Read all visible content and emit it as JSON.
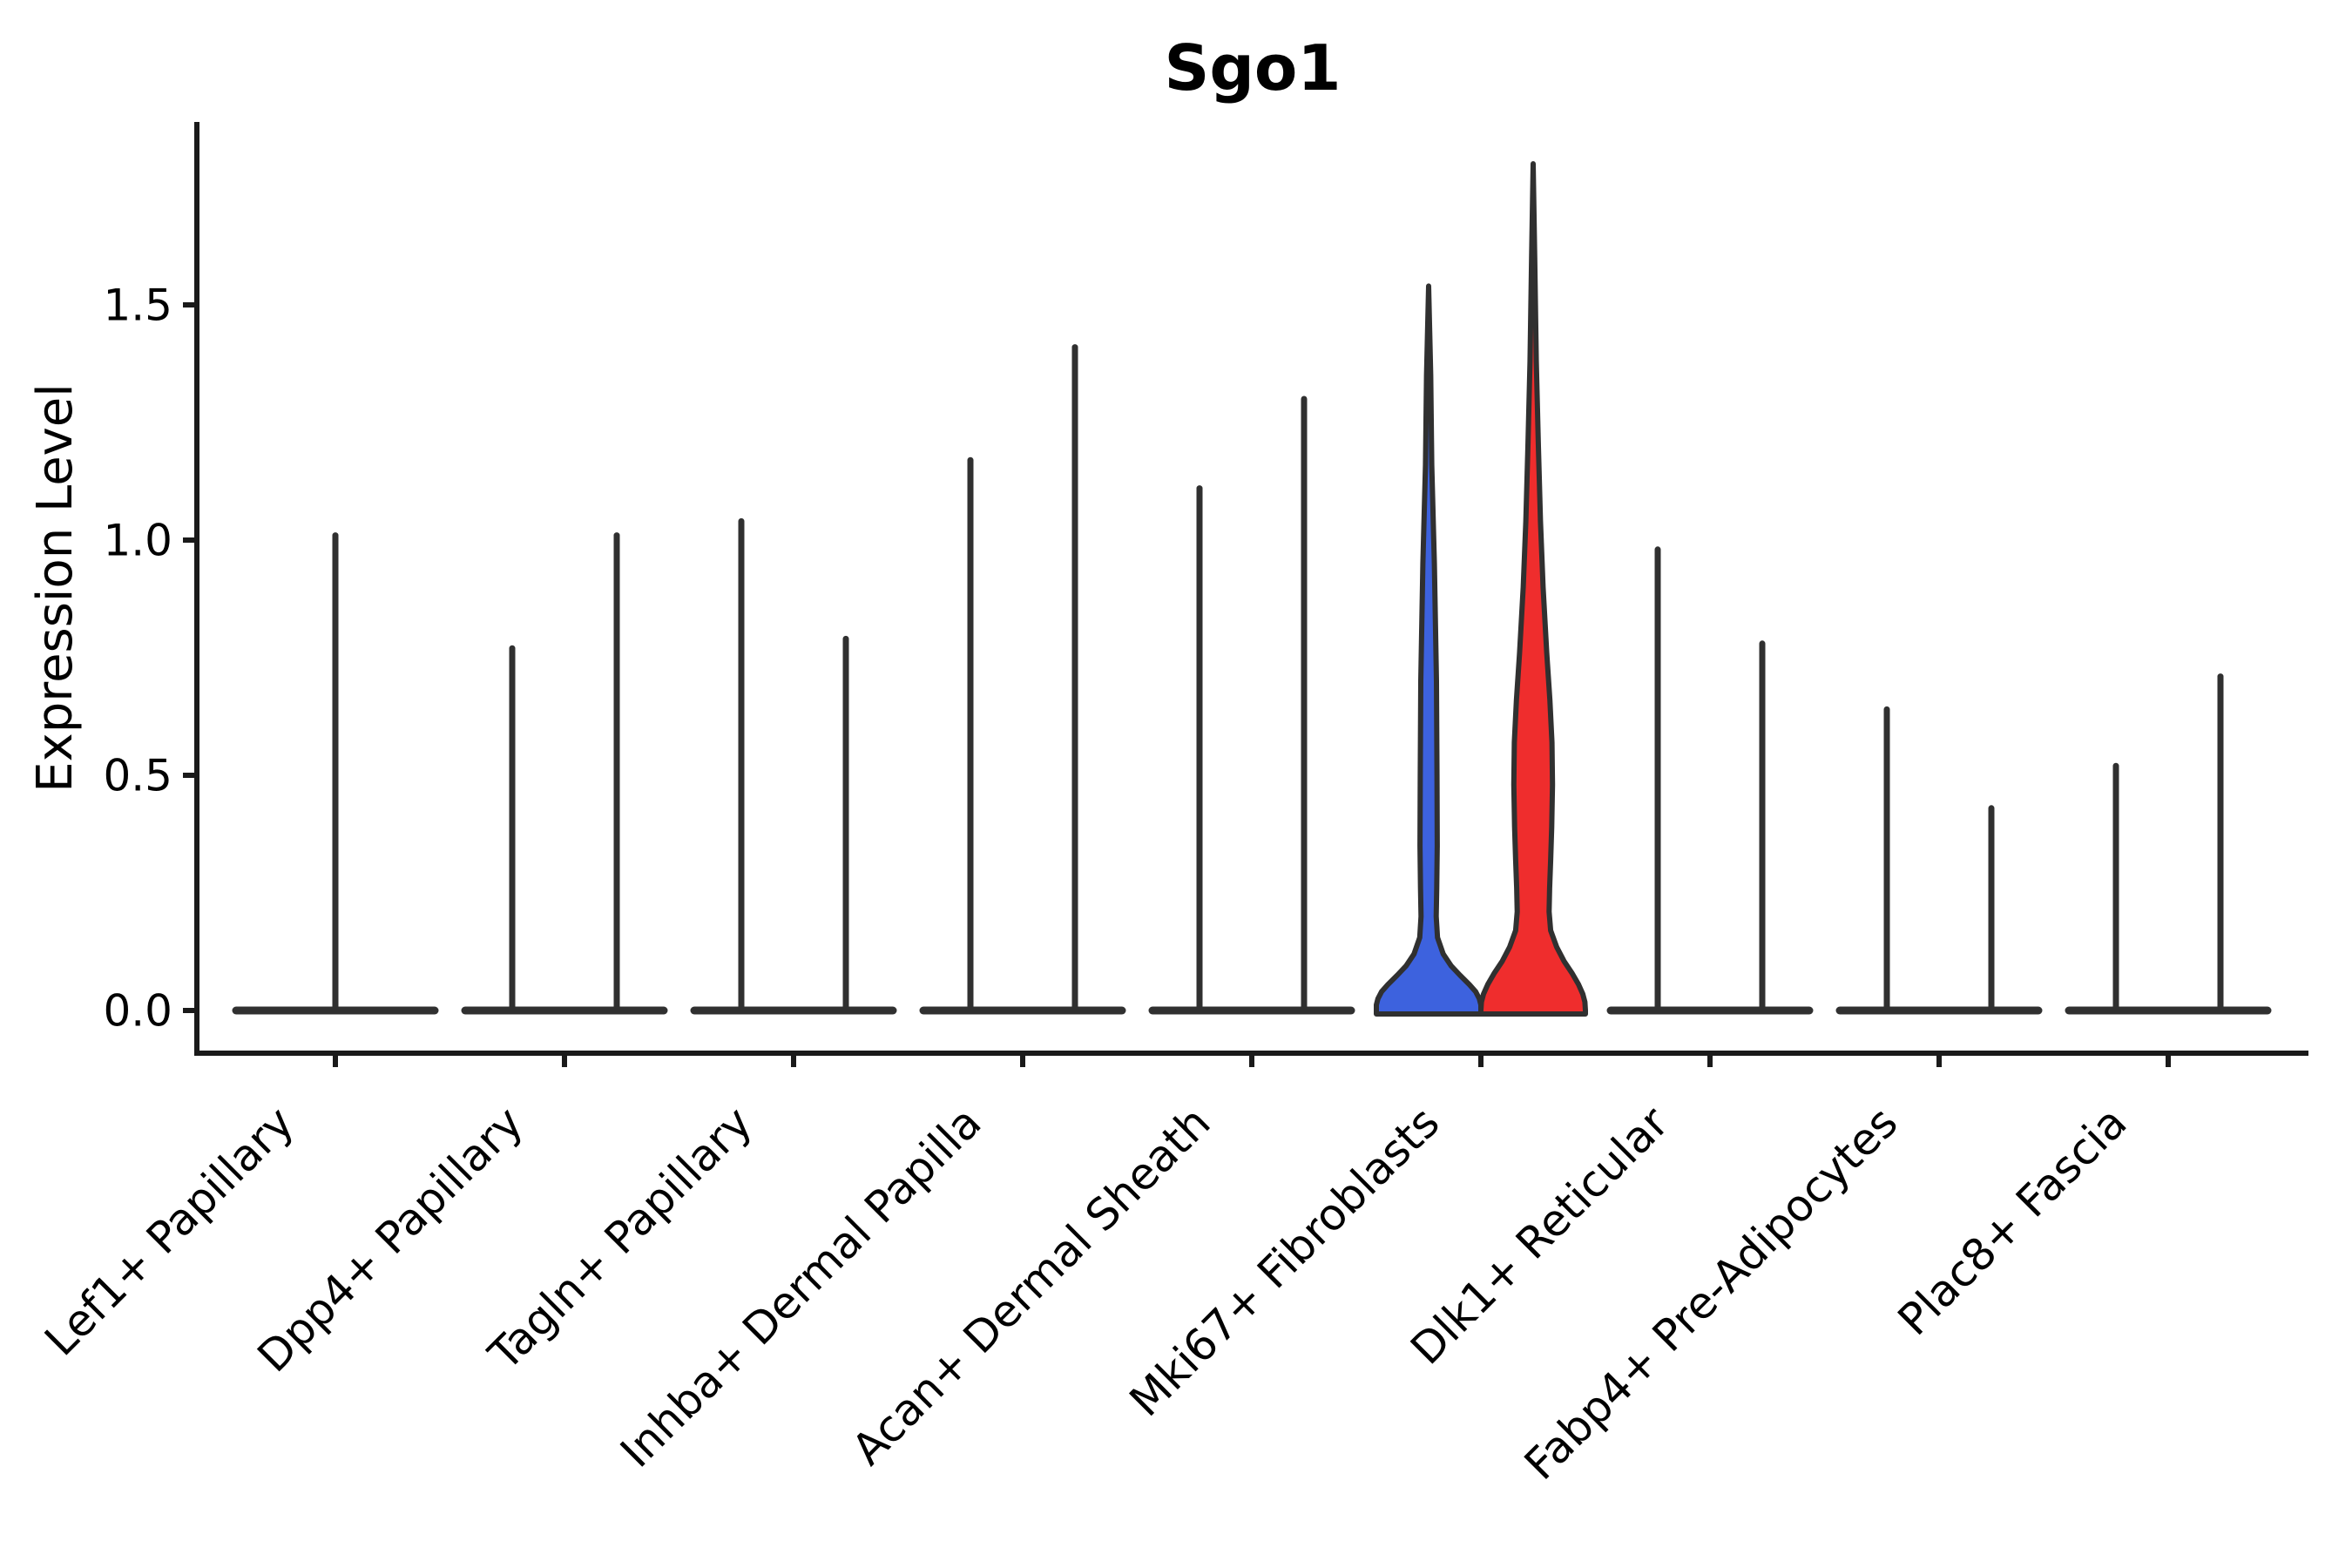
{
  "chart_data": {
    "type": "violin",
    "title": "Sgo1",
    "ylabel": "Expression Level",
    "xlabel": "",
    "ytick_values": [
      0.0,
      0.5,
      1.0,
      1.5
    ],
    "ytick_labels": [
      "0.0",
      "0.5",
      "1.0",
      "1.5"
    ],
    "ylim": [
      -0.09,
      1.88
    ],
    "grid": false,
    "legend_position": "none",
    "background_color": "#ffffff",
    "axis_color": "#1a1a1a",
    "outline_color": "#303030",
    "split_colors": {
      "left_group": "#3D62DE",
      "right_group": "#EF2D2D"
    },
    "categories": [
      {
        "label": "Lef1+ Papillary",
        "violins": [
          {
            "side": "center",
            "max": 1.01,
            "style": "spike"
          }
        ]
      },
      {
        "label": "Dpp4+ Papillary",
        "violins": [
          {
            "side": "left",
            "max": 0.77,
            "style": "spike"
          },
          {
            "side": "right",
            "max": 1.01,
            "style": "spike"
          }
        ]
      },
      {
        "label": "Tagln+ Papillary",
        "violins": [
          {
            "side": "left",
            "max": 1.04,
            "style": "spike"
          },
          {
            "side": "right",
            "max": 0.79,
            "style": "spike"
          }
        ]
      },
      {
        "label": "Inhba+ Dermal Papilla",
        "violins": [
          {
            "side": "left",
            "max": 1.17,
            "style": "spike"
          },
          {
            "side": "right",
            "max": 1.41,
            "style": "spike"
          }
        ]
      },
      {
        "label": "Acan+ Dermal Sheath",
        "violins": [
          {
            "side": "left",
            "max": 1.11,
            "style": "spike"
          },
          {
            "side": "right",
            "max": 1.3,
            "style": "spike"
          }
        ]
      },
      {
        "label": "Mki67+ Fibroblasts",
        "violins": [
          {
            "side": "left",
            "max": 1.54,
            "style": "filled",
            "color": "#3D62DE",
            "profile": [
              [
                1.54,
                0
              ],
              [
                1.35,
                0.04
              ],
              [
                1.16,
                0.06
              ],
              [
                0.95,
                0.11
              ],
              [
                0.7,
                0.15
              ],
              [
                0.5,
                0.16
              ],
              [
                0.35,
                0.165
              ],
              [
                0.26,
                0.155
              ],
              [
                0.2,
                0.145
              ],
              [
                0.155,
                0.17
              ],
              [
                0.12,
                0.28
              ],
              [
                0.095,
                0.43
              ],
              [
                0.075,
                0.6
              ],
              [
                0.055,
                0.78
              ],
              [
                0.04,
                0.9
              ],
              [
                0.025,
                0.97
              ],
              [
                0.012,
                1.0
              ],
              [
                0,
                1.0
              ]
            ]
          },
          {
            "side": "right",
            "max": 1.8,
            "style": "filled",
            "color": "#EF2D2D",
            "profile": [
              [
                1.8,
                0
              ],
              [
                1.6,
                0.03
              ],
              [
                1.38,
                0.06
              ],
              [
                1.2,
                0.1
              ],
              [
                1.04,
                0.14
              ],
              [
                0.9,
                0.19
              ],
              [
                0.76,
                0.26
              ],
              [
                0.66,
                0.32
              ],
              [
                0.57,
                0.36
              ],
              [
                0.48,
                0.37
              ],
              [
                0.39,
                0.355
              ],
              [
                0.32,
                0.335
              ],
              [
                0.26,
                0.315
              ],
              [
                0.21,
                0.305
              ],
              [
                0.17,
                0.335
              ],
              [
                0.135,
                0.45
              ],
              [
                0.105,
                0.59
              ],
              [
                0.08,
                0.74
              ],
              [
                0.055,
                0.87
              ],
              [
                0.035,
                0.95
              ],
              [
                0.018,
                0.99
              ],
              [
                0,
                1.0
              ]
            ]
          }
        ]
      },
      {
        "label": "Dlk1+ Reticular",
        "violins": [
          {
            "side": "left",
            "max": 0.98,
            "style": "spike"
          },
          {
            "side": "right",
            "max": 0.78,
            "style": "spike"
          }
        ]
      },
      {
        "label": "Fabp4+ Pre-Adipocytes",
        "violins": [
          {
            "side": "left",
            "max": 0.64,
            "style": "spike"
          },
          {
            "side": "right",
            "max": 0.43,
            "style": "spike"
          }
        ]
      },
      {
        "label": "Plac8+ Fascia",
        "violins": [
          {
            "side": "left",
            "max": 0.52,
            "style": "spike"
          },
          {
            "side": "right",
            "max": 0.71,
            "style": "spike"
          }
        ]
      }
    ]
  }
}
